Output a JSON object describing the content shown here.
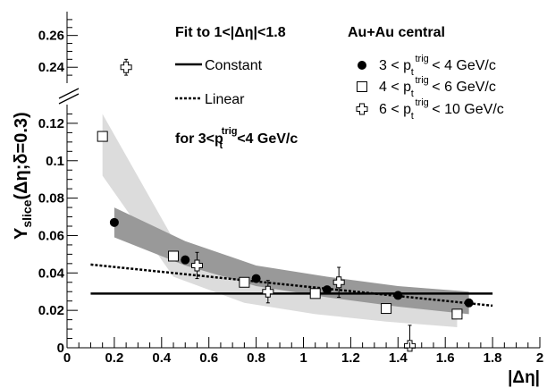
{
  "chart_data": {
    "type": "scatter",
    "xlabel": "|Δη|",
    "ylabel": "Y",
    "ylabel_sub": "slice",
    "ylabel_paren": "(Δη;δ=0.3)",
    "xlim": [
      0,
      2
    ],
    "ylim_lower": [
      0,
      0.13
    ],
    "ylim_upper": [
      0.23,
      0.275
    ],
    "x_ticks": [
      "0",
      "0.2",
      "0.4",
      "0.6",
      "0.8",
      "1",
      "1.2",
      "1.4",
      "1.6",
      "1.8",
      "2"
    ],
    "y_ticks_lower": [
      "0",
      "0.02",
      "0.04",
      "0.06",
      "0.08",
      "0.1",
      "0.12"
    ],
    "y_ticks_upper": [
      "0.24",
      "0.26"
    ],
    "fit_title": "Fit to 1<|Δη|<1.8",
    "fit_note": "for 3<p",
    "fit_note_sup": "trig",
    "fit_note_sub": "t",
    "fit_note_end": "<4 GeV/c",
    "fits": [
      {
        "name": "Constant",
        "x": [
          0.1,
          1.8
        ],
        "y": [
          0.029,
          0.029
        ]
      },
      {
        "name": "Linear",
        "x": [
          0.1,
          1.8
        ],
        "y": [
          0.0445,
          0.0225
        ]
      }
    ],
    "legend_title": "Au+Au central",
    "series": [
      {
        "name": "3 < p",
        "sup": "trig",
        "sub": "t",
        "name_end": "< 4 GeV/c",
        "marker": "circle",
        "x": [
          0.2,
          0.5,
          0.8,
          1.1,
          1.4,
          1.7
        ],
        "y": [
          0.067,
          0.047,
          0.037,
          0.031,
          0.028,
          0.024
        ],
        "err": [
          0,
          0,
          0,
          0,
          0,
          0
        ],
        "band_low": [
          0.059,
          0.044,
          0.033,
          0.027,
          0.022,
          0.018
        ],
        "band_high": [
          0.075,
          0.057,
          0.044,
          0.038,
          0.033,
          0.03
        ]
      },
      {
        "name": "4 < p",
        "sup": "trig",
        "sub": "t",
        "name_end": "< 6 GeV/c",
        "marker": "square",
        "x": [
          0.15,
          0.45,
          0.75,
          1.05,
          1.35,
          1.65
        ],
        "y": [
          0.113,
          0.049,
          0.035,
          0.029,
          0.021,
          0.018
        ],
        "err": [
          0,
          0,
          0,
          0,
          0,
          0.002
        ],
        "band_low": [
          0.092,
          0.038,
          0.024,
          0.018,
          0.014,
          0.011
        ],
        "band_high": [
          0.125,
          0.058,
          0.043,
          0.036,
          0.03,
          0.027
        ]
      },
      {
        "name": "6 < p",
        "sup": "trig",
        "sub": "t",
        "name_end": "< 10 GeV/c",
        "marker": "cross",
        "x": [
          0.25,
          0.55,
          0.85,
          1.15,
          1.45
        ],
        "y": [
          0.24,
          0.044,
          0.03,
          0.035,
          0.001
        ],
        "err": [
          0.005,
          0.007,
          0.006,
          0.008,
          0.011
        ],
        "band_low": [],
        "band_high": []
      }
    ],
    "colors": {
      "band_3_4": "#999999",
      "band_4_6": "#dcdcdc",
      "markers": "#000000"
    }
  }
}
